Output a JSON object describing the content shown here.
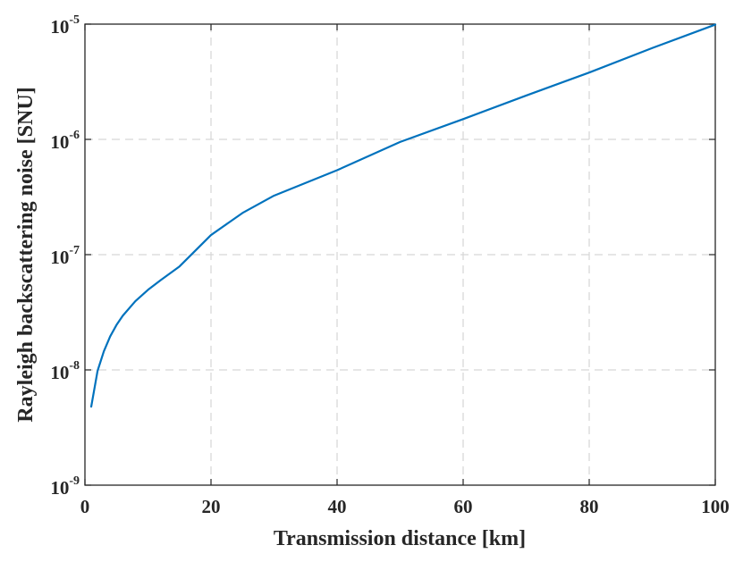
{
  "chart_data": {
    "type": "line",
    "title": "",
    "xlabel": "Transmission distance [km]",
    "ylabel": "Rayleigh backscattering noise [SNU]",
    "xlim": [
      0,
      100
    ],
    "ylim": [
      1e-09,
      1e-05
    ],
    "yscale": "log",
    "grid": true,
    "grid_style": "dashed",
    "legend": "none",
    "line_color": "#0072BD",
    "x_ticks": [
      {
        "value": 0,
        "label": "0"
      },
      {
        "value": 20,
        "label": "20"
      },
      {
        "value": 40,
        "label": "40"
      },
      {
        "value": 60,
        "label": "60"
      },
      {
        "value": 80,
        "label": "80"
      },
      {
        "value": 100,
        "label": "100"
      }
    ],
    "y_ticks": [
      {
        "value": 1e-09,
        "base": "10",
        "exp": "-9"
      },
      {
        "value": 1e-08,
        "base": "10",
        "exp": "-8"
      },
      {
        "value": 1e-07,
        "base": "10",
        "exp": "-7"
      },
      {
        "value": 1e-06,
        "base": "10",
        "exp": "-6"
      },
      {
        "value": 1e-05,
        "base": "10",
        "exp": "-5"
      }
    ],
    "series": [
      {
        "x": [
          1,
          2,
          3,
          4,
          5,
          6,
          8,
          10,
          12,
          15,
          20,
          25,
          30,
          40,
          50,
          60,
          70,
          80,
          90,
          100
        ],
        "y": [
          4.8e-09,
          9.8e-09,
          1.45e-08,
          1.95e-08,
          2.45e-08,
          2.95e-08,
          3.95e-08,
          4.95e-08,
          6e-08,
          7.9e-08,
          1.48e-07,
          2.3e-07,
          3.25e-07,
          5.4e-07,
          9.5e-07,
          1.5e-06,
          2.4e-06,
          3.8e-06,
          6.2e-06,
          9.9e-06
        ]
      }
    ]
  }
}
